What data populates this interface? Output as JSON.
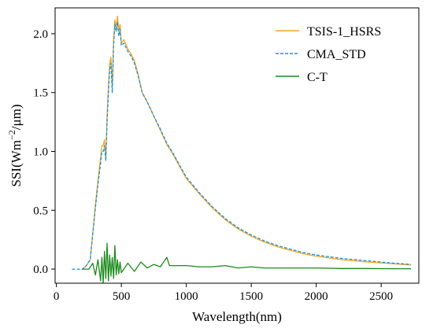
{
  "chart_data": {
    "type": "line",
    "xlabel": "Wavelength(nm)",
    "ylabel": "SSI(Wm",
    "ylabel_sup": "−2",
    "ylabel_tail": "/μm)",
    "xlim": [
      -10,
      2790
    ],
    "ylim": [
      -0.12,
      2.22
    ],
    "xticks": [
      0,
      500,
      1000,
      1500,
      2000,
      2500
    ],
    "yticks": [
      0.0,
      0.5,
      1.0,
      1.5,
      2.0
    ],
    "xtick_labels": [
      "0",
      "500",
      "1000",
      "1500",
      "2000",
      "2500"
    ],
    "ytick_labels": [
      "0.0",
      "0.5",
      "1.0",
      "1.5",
      "2.0"
    ],
    "grid": false,
    "legend_position": "top-right",
    "series": [
      {
        "name": "TSIS-1_HSRS",
        "color": "#f5a623",
        "style": "solid",
        "x": [
          200,
          230,
          260,
          280,
          300,
          320,
          340,
          350,
          360,
          370,
          380,
          390,
          400,
          410,
          420,
          430,
          440,
          450,
          460,
          470,
          480,
          490,
          500,
          520,
          550,
          580,
          600,
          630,
          660,
          700,
          750,
          800,
          850,
          900,
          950,
          1000,
          1100,
          1200,
          1300,
          1400,
          1500,
          1600,
          1700,
          1800,
          1900,
          2000,
          2200,
          2400,
          2600,
          2730
        ],
        "y": [
          0.0,
          0.03,
          0.08,
          0.3,
          0.55,
          0.75,
          0.95,
          1.05,
          1.05,
          1.1,
          0.95,
          1.3,
          1.55,
          1.75,
          1.8,
          1.55,
          1.95,
          2.12,
          2.05,
          2.15,
          2.02,
          2.08,
          1.92,
          1.95,
          1.87,
          1.82,
          1.77,
          1.65,
          1.5,
          1.42,
          1.3,
          1.18,
          1.06,
          0.97,
          0.87,
          0.77,
          0.64,
          0.52,
          0.42,
          0.34,
          0.28,
          0.23,
          0.19,
          0.16,
          0.13,
          0.11,
          0.08,
          0.06,
          0.045,
          0.035
        ]
      },
      {
        "name": "CMA_STD",
        "color": "#1f8fd6",
        "style": "dashed",
        "x": [
          120,
          150,
          200,
          230,
          260,
          280,
          300,
          320,
          340,
          350,
          360,
          370,
          380,
          390,
          400,
          410,
          420,
          430,
          440,
          450,
          460,
          470,
          480,
          490,
          500,
          520,
          550,
          580,
          600,
          630,
          660,
          700,
          750,
          800,
          850,
          900,
          950,
          1000,
          1100,
          1200,
          1300,
          1400,
          1500,
          1600,
          1700,
          1800,
          1900,
          2000,
          2200,
          2400,
          2600,
          2730
        ],
        "y": [
          0.0,
          0.0,
          0.0,
          0.03,
          0.08,
          0.3,
          0.52,
          0.72,
          0.9,
          1.0,
          1.0,
          1.05,
          0.92,
          1.25,
          1.5,
          1.7,
          1.75,
          1.5,
          1.9,
          2.08,
          2.02,
          2.1,
          1.98,
          2.04,
          1.9,
          1.92,
          1.85,
          1.8,
          1.75,
          1.64,
          1.5,
          1.42,
          1.3,
          1.19,
          1.07,
          0.98,
          0.88,
          0.78,
          0.65,
          0.53,
          0.43,
          0.35,
          0.29,
          0.24,
          0.2,
          0.17,
          0.14,
          0.12,
          0.09,
          0.07,
          0.05,
          0.04
        ]
      },
      {
        "name": "C-T",
        "color": "#1a8a1a",
        "style": "solid",
        "x": [
          200,
          250,
          280,
          300,
          320,
          340,
          350,
          360,
          370,
          380,
          390,
          400,
          410,
          420,
          430,
          440,
          450,
          460,
          470,
          480,
          490,
          500,
          550,
          600,
          650,
          700,
          750,
          800,
          850,
          870,
          900,
          1000,
          1100,
          1200,
          1300,
          1400,
          1500,
          1600,
          1800,
          2000,
          2200,
          2400,
          2600,
          2730
        ],
        "y": [
          0.0,
          0.0,
          0.05,
          -0.05,
          0.08,
          -0.1,
          0.1,
          -0.12,
          0.15,
          -0.08,
          0.22,
          -0.1,
          0.12,
          -0.06,
          0.1,
          -0.08,
          0.2,
          -0.05,
          0.08,
          -0.04,
          0.06,
          -0.03,
          0.05,
          -0.02,
          0.06,
          0.01,
          0.04,
          0.02,
          0.1,
          0.03,
          0.03,
          0.03,
          0.02,
          0.02,
          0.03,
          0.01,
          0.02,
          0.01,
          0.01,
          0.01,
          0.005,
          0.005,
          0.003,
          0.003
        ]
      }
    ]
  }
}
